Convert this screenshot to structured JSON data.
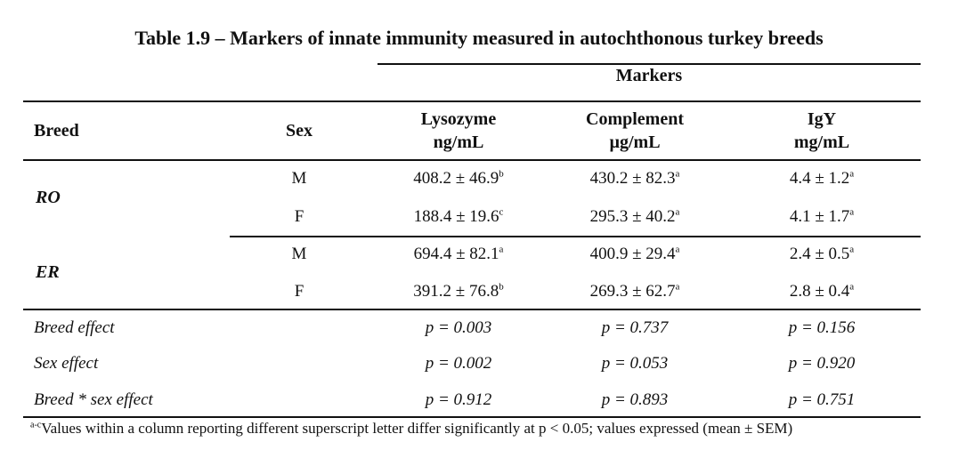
{
  "title": "Table 1.9 – Markers of innate immunity measured in autochthonous turkey breeds",
  "markers_label": "Markers",
  "headers": {
    "breed": "Breed",
    "sex": "Sex",
    "lysozyme": "Lysozyme",
    "lysozyme_unit": "ng/mL",
    "complement": "Complement",
    "complement_unit": "µg/mL",
    "igy": "IgY",
    "igy_unit": "mg/mL"
  },
  "groups": [
    {
      "breed": "RO",
      "rows": [
        {
          "sex": "M",
          "lysozyme": "408.2 ± 46.9",
          "lysozyme_sup": "b",
          "complement": "430.2 ± 82.3",
          "complement_sup": "a",
          "igy": "4.4 ± 1.2",
          "igy_sup": "a"
        },
        {
          "sex": "F",
          "lysozyme": "188.4 ± 19.6",
          "lysozyme_sup": "c",
          "complement": "295.3 ± 40.2",
          "complement_sup": "a",
          "igy": "4.1 ± 1.7",
          "igy_sup": "a"
        }
      ]
    },
    {
      "breed": "ER",
      "rows": [
        {
          "sex": "M",
          "lysozyme": "694.4 ± 82.1",
          "lysozyme_sup": "a",
          "complement": "400.9 ± 29.4",
          "complement_sup": "a",
          "igy": "2.4 ± 0.5",
          "igy_sup": "a"
        },
        {
          "sex": "F",
          "lysozyme": "391.2 ± 76.8",
          "lysozyme_sup": "b",
          "complement": "269.3 ± 62.7",
          "complement_sup": "a",
          "igy": "2.8 ± 0.4",
          "igy_sup": "a"
        }
      ]
    }
  ],
  "effects": [
    {
      "label": "Breed effect",
      "lysozyme": "p = 0.003",
      "complement": "p = 0.737",
      "igy": "p = 0.156"
    },
    {
      "label": "Sex effect",
      "lysozyme": "p = 0.002",
      "complement": "p = 0.053",
      "igy": "p = 0.920"
    },
    {
      "label": "Breed * sex effect",
      "lysozyme": "p = 0.912",
      "complement": "p = 0.893",
      "igy": "p = 0.751"
    }
  ],
  "footnote": {
    "sup": "a-c",
    "text": "Values within a column reporting different superscript letter differ significantly at p < 0.05; values expressed (mean ± SEM)"
  }
}
